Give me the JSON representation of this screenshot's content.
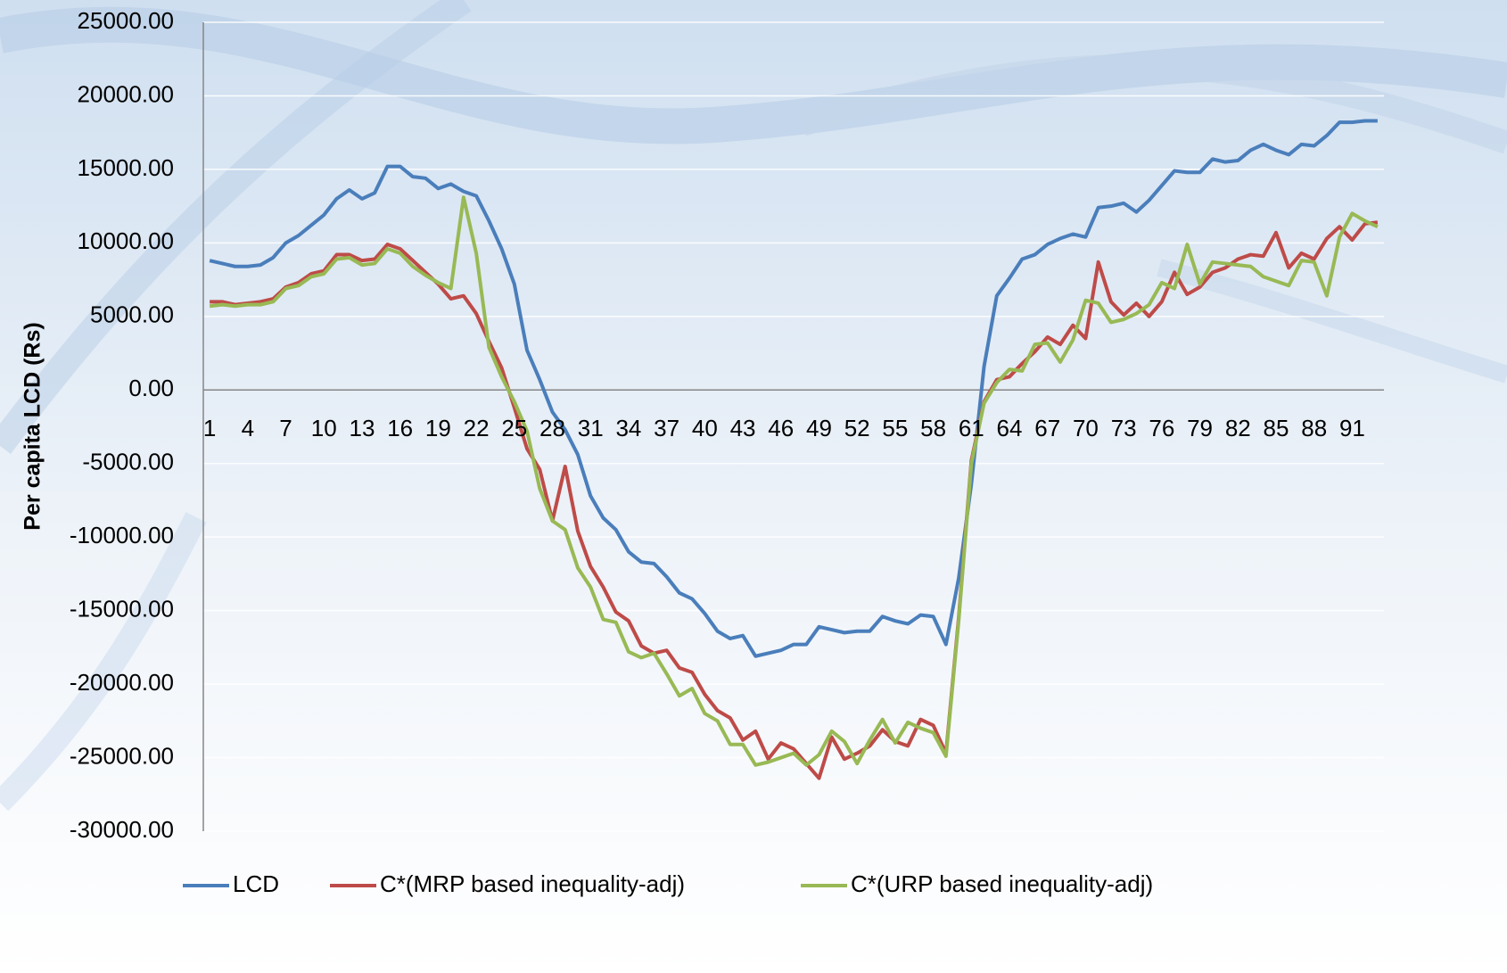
{
  "chart_data": {
    "type": "line",
    "y_label": "Per capita LCD (Rs)",
    "categories": [
      "1",
      null,
      null,
      "4",
      null,
      null,
      "7",
      null,
      null,
      "10",
      null,
      null,
      "13",
      null,
      null,
      "16",
      null,
      null,
      "19",
      null,
      null,
      "22",
      null,
      null,
      "25",
      null,
      null,
      "28",
      null,
      null,
      "31",
      null,
      null,
      "34",
      null,
      null,
      "37",
      null,
      null,
      "40",
      null,
      null,
      "43",
      null,
      null,
      "46",
      null,
      null,
      "49",
      null,
      null,
      "52",
      null,
      null,
      "55",
      null,
      null,
      "58",
      null,
      null,
      "61",
      null,
      null,
      "64",
      null,
      null,
      "67",
      null,
      null,
      "70",
      null,
      null,
      "73",
      null,
      null,
      "76",
      null,
      null,
      "79",
      null,
      null,
      "82",
      null,
      null,
      "85",
      null,
      null,
      "88",
      null,
      null,
      "91",
      null,
      null
    ],
    "series": [
      {
        "name": "LCD",
        "color": "#4a7ebb",
        "values": [
          8800,
          8600,
          8400,
          8400,
          8500,
          9000,
          10000,
          10500,
          11200,
          11900,
          13000,
          13600,
          13000,
          13400,
          15200,
          15200,
          14500,
          14400,
          13700,
          14000,
          13500,
          13200,
          11500,
          9600,
          7200,
          2700,
          700,
          -1500,
          -2700,
          -4400,
          -7200,
          -8700,
          -9500,
          -11000,
          -11700,
          -11800,
          -12700,
          -13800,
          -14200,
          -15200,
          -16400,
          -16900,
          -16700,
          -18100,
          -17900,
          -17700,
          -17300,
          -17300,
          -16100,
          -16300,
          -16500,
          -16400,
          -16400,
          -15400,
          -15700,
          -15900,
          -15300,
          -15400,
          -17300,
          -12800,
          -6400,
          1600,
          6400,
          7600,
          8900,
          9200,
          9900,
          10300,
          10600,
          10400,
          12400,
          12500,
          12700,
          12100,
          12900,
          13900,
          14900,
          14800,
          14800,
          15700,
          15500,
          15600,
          16300,
          16700,
          16300,
          16000,
          16700,
          16600,
          17300,
          18200,
          18200,
          18300,
          18300
        ]
      },
      {
        "name": "C*(MRP based inequality-adj)",
        "color": "#be4b48",
        "values": [
          6000,
          6000,
          5800,
          5900,
          6000,
          6200,
          7000,
          7300,
          7900,
          8100,
          9200,
          9200,
          8800,
          8900,
          9900,
          9600,
          8800,
          8000,
          7200,
          6200,
          6400,
          5200,
          3300,
          1500,
          -1200,
          -4000,
          -5400,
          -8900,
          -5200,
          -9600,
          -12000,
          -13400,
          -15100,
          -15700,
          -17400,
          -17900,
          -17700,
          -18900,
          -19200,
          -20700,
          -21800,
          -22300,
          -23800,
          -23200,
          -25100,
          -24000,
          -24400,
          -25400,
          -26400,
          -23600,
          -25100,
          -24700,
          -24200,
          -23100,
          -23900,
          -24200,
          -22400,
          -22800,
          -24700,
          -15500,
          -4800,
          -800,
          700,
          900,
          1800,
          2600,
          3600,
          3100,
          4400,
          3500,
          8700,
          6000,
          5100,
          5900,
          5000,
          6000,
          8000,
          6500,
          7000,
          8000,
          8300,
          8900,
          9200,
          9100,
          10700,
          8300,
          9300,
          8900,
          10300,
          11100,
          10200,
          11300,
          11400
        ]
      },
      {
        "name": "C*(URP based inequality-adj)",
        "color": "#98b954",
        "values": [
          5700,
          5800,
          5700,
          5800,
          5800,
          6000,
          6900,
          7100,
          7700,
          7900,
          8900,
          9000,
          8500,
          8600,
          9600,
          9300,
          8400,
          7800,
          7300,
          6900,
          13100,
          9300,
          2900,
          900,
          -800,
          -2800,
          -6700,
          -8900,
          -9500,
          -12100,
          -13400,
          -15600,
          -15800,
          -17800,
          -18200,
          -17900,
          -19300,
          -20800,
          -20300,
          -22000,
          -22500,
          -24100,
          -24100,
          -25500,
          -25300,
          -25000,
          -24700,
          -25500,
          -24800,
          -23200,
          -23900,
          -25400,
          -23800,
          -22400,
          -24000,
          -22600,
          -23000,
          -23300,
          -24900,
          -15700,
          -5000,
          -900,
          500,
          1400,
          1300,
          3100,
          3200,
          1900,
          3400,
          6100,
          5900,
          4600,
          4800,
          5200,
          5800,
          7300,
          6900,
          9900,
          7200,
          8700,
          8600,
          8500,
          8400,
          7700,
          7400,
          7100,
          8800,
          8700,
          6400,
          10400,
          12000,
          11500,
          11100
        ]
      }
    ],
    "ylim": [
      -30000,
      25000
    ],
    "yticks": [
      {
        "value": -30000,
        "label": "-30000.00"
      },
      {
        "value": -25000,
        "label": "-25000.00"
      },
      {
        "value": -20000,
        "label": "-20000.00"
      },
      {
        "value": -15000,
        "label": "-15000.00"
      },
      {
        "value": -10000,
        "label": "-10000.00"
      },
      {
        "value": -5000,
        "label": "-5000.00"
      },
      {
        "value": 0,
        "label": "0.00"
      },
      {
        "value": 5000,
        "label": "5000.00"
      },
      {
        "value": 10000,
        "label": "10000.00"
      },
      {
        "value": 15000,
        "label": "15000.00"
      },
      {
        "value": 20000,
        "label": "20000.00"
      },
      {
        "value": 25000,
        "label": "25000.00"
      }
    ],
    "grid": true,
    "legend": "bottom"
  }
}
